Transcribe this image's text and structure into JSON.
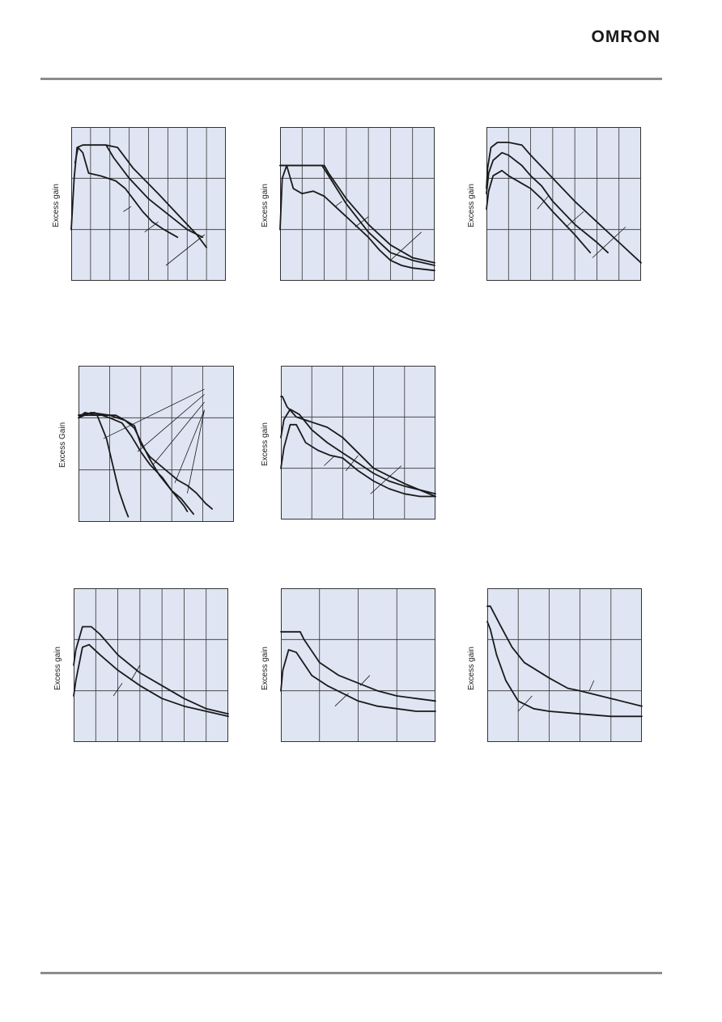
{
  "header": {
    "brand": "OMRON"
  },
  "colors": {
    "plot_background": "#dfe5f3",
    "grid": "#333333",
    "curve": "#1a1a1a",
    "rule": "#8c8c8c"
  },
  "chart_data": [
    {
      "type": "line",
      "ylabel": "Excess gain",
      "xlim": [
        0,
        8
      ],
      "ylim": [
        0,
        3
      ],
      "grid": {
        "x": 8,
        "y": 3
      },
      "series": [
        {
          "x": [
            0,
            0.15,
            0.3,
            0.6,
            1.0,
            1.8,
            2.4,
            3.2,
            4.5,
            5.5,
            6.5,
            7.0
          ],
          "y": [
            1.0,
            2.0,
            2.6,
            2.65,
            2.65,
            2.65,
            2.6,
            2.2,
            1.7,
            1.3,
            0.9,
            0.65
          ]
        },
        {
          "x": [
            1.8,
            2.2,
            3.0,
            4.0,
            5.0,
            6.0,
            6.8
          ],
          "y": [
            2.65,
            2.4,
            2.0,
            1.6,
            1.3,
            1.0,
            0.85
          ]
        },
        {
          "x": [
            0.2,
            0.35,
            0.6,
            0.9,
            1.5,
            2.3,
            2.8,
            3.2,
            3.7,
            4.2,
            4.8,
            5.5
          ],
          "y": [
            2.3,
            2.6,
            2.5,
            2.1,
            2.05,
            1.95,
            1.8,
            1.6,
            1.35,
            1.15,
            1.0,
            0.85
          ]
        }
      ],
      "pointers": [
        {
          "x": [
            2.7,
            3.1
          ],
          "y": [
            1.35,
            1.45
          ]
        },
        {
          "x": [
            3.8,
            4.5
          ],
          "y": [
            0.95,
            1.15
          ]
        },
        {
          "x": [
            4.9,
            6.9
          ],
          "y": [
            0.3,
            0.9
          ]
        }
      ]
    },
    {
      "type": "line",
      "ylabel": "Excess gain",
      "xlim": [
        0,
        7
      ],
      "ylim": [
        0,
        3
      ],
      "grid": {
        "x": 7,
        "y": 3
      },
      "series": [
        {
          "x": [
            0,
            2.0,
            2.2,
            3.0,
            4.0,
            5.0,
            6.0,
            7.0
          ],
          "y": [
            2.25,
            2.25,
            2.1,
            1.6,
            1.1,
            0.7,
            0.45,
            0.35
          ]
        },
        {
          "x": [
            0,
            1.9,
            2.2,
            3.0,
            4.0,
            5.0,
            6.0,
            7.0
          ],
          "y": [
            2.25,
            2.25,
            2.05,
            1.5,
            0.95,
            0.55,
            0.4,
            0.3
          ]
        },
        {
          "x": [
            0,
            0.1,
            0.3,
            0.6,
            1.0,
            1.5,
            2.0,
            2.5,
            3.0,
            3.5,
            4.0,
            4.5,
            5.0,
            5.5,
            6.0,
            7.0
          ],
          "y": [
            1.0,
            2.0,
            2.25,
            1.8,
            1.7,
            1.75,
            1.65,
            1.45,
            1.25,
            1.05,
            0.85,
            0.6,
            0.4,
            0.3,
            0.25,
            0.2
          ]
        }
      ],
      "pointers": [
        {
          "x": [
            2.5,
            2.8
          ],
          "y": [
            1.45,
            1.55
          ]
        },
        {
          "x": [
            3.4,
            4.0
          ],
          "y": [
            1.05,
            1.25
          ]
        },
        {
          "x": [
            5.0,
            6.4
          ],
          "y": [
            0.4,
            0.95
          ]
        }
      ]
    },
    {
      "type": "line",
      "ylabel": "Excess gain",
      "xlim": [
        0,
        7
      ],
      "ylim": [
        0,
        3
      ],
      "grid": {
        "x": 7,
        "y": 3
      },
      "series": [
        {
          "x": [
            0,
            0.05,
            0.2,
            0.5,
            1.0,
            1.6,
            2.0,
            3.0,
            4.0,
            5.0,
            6.0,
            7.0
          ],
          "y": [
            1.8,
            2.2,
            2.6,
            2.7,
            2.7,
            2.65,
            2.45,
            2.0,
            1.55,
            1.15,
            0.75,
            0.35
          ]
        },
        {
          "x": [
            0,
            0.1,
            0.3,
            0.7,
            1.0,
            1.6,
            2.0,
            2.5,
            3.0,
            4.0,
            5.0,
            5.5
          ],
          "y": [
            1.7,
            2.1,
            2.35,
            2.5,
            2.45,
            2.25,
            2.05,
            1.85,
            1.55,
            1.1,
            0.75,
            0.55
          ]
        },
        {
          "x": [
            0,
            0.1,
            0.3,
            0.7,
            1.0,
            1.6,
            2.0,
            2.5,
            3.0,
            4.0,
            4.7
          ],
          "y": [
            1.4,
            1.75,
            2.05,
            2.15,
            2.05,
            1.9,
            1.8,
            1.6,
            1.35,
            0.9,
            0.55
          ]
        }
      ],
      "pointers": [
        {
          "x": [
            2.3,
            2.8
          ],
          "y": [
            1.4,
            1.65
          ]
        },
        {
          "x": [
            3.6,
            4.4
          ],
          "y": [
            1.05,
            1.35
          ]
        },
        {
          "x": [
            4.8,
            6.3
          ],
          "y": [
            0.45,
            1.05
          ]
        }
      ]
    },
    {
      "type": "line",
      "ylabel": "Excess Gain",
      "xlim": [
        0,
        5
      ],
      "ylim": [
        0,
        3
      ],
      "grid": {
        "x": 5,
        "y": 3
      },
      "series": [
        {
          "x": [
            0,
            0.2,
            0.6,
            0.9,
            1.1,
            1.3,
            1.5,
            1.6
          ],
          "y": [
            2.0,
            2.1,
            2.05,
            1.6,
            1.1,
            0.6,
            0.25,
            0.1
          ]
        },
        {
          "x": [
            0,
            0.4,
            1.0,
            1.5,
            1.8,
            2.0,
            2.3,
            2.6,
            3.0,
            3.4,
            3.5
          ],
          "y": [
            2.0,
            2.1,
            2.05,
            1.95,
            1.8,
            1.55,
            1.2,
            0.9,
            0.6,
            0.3,
            0.2
          ]
        },
        {
          "x": [
            0,
            0.5,
            1.0,
            1.4,
            1.7,
            2.0,
            2.3,
            2.7,
            3.0,
            3.3,
            3.5,
            3.7
          ],
          "y": [
            2.05,
            2.1,
            2.0,
            1.9,
            1.65,
            1.35,
            1.1,
            0.85,
            0.6,
            0.45,
            0.3,
            0.15
          ]
        },
        {
          "x": [
            0,
            0.5,
            1.2,
            1.8,
            2.0,
            2.3,
            2.6,
            2.9,
            3.2,
            3.5,
            3.8,
            4.1,
            4.3
          ],
          "y": [
            2.05,
            2.05,
            2.05,
            1.85,
            1.5,
            1.25,
            1.1,
            0.95,
            0.8,
            0.7,
            0.55,
            0.35,
            0.25
          ]
        }
      ],
      "pointers": [
        {
          "x": [
            0.8,
            4.05
          ],
          "y": [
            1.6,
            2.55
          ]
        },
        {
          "x": [
            1.9,
            4.05
          ],
          "y": [
            1.35,
            2.45
          ]
        },
        {
          "x": [
            2.4,
            4.05
          ],
          "y": [
            1.1,
            2.3
          ]
        },
        {
          "x": [
            3.1,
            4.05
          ],
          "y": [
            0.75,
            2.15
          ]
        },
        {
          "x": [
            3.5,
            4.05
          ],
          "y": [
            0.55,
            2.15
          ]
        }
      ]
    },
    {
      "type": "line",
      "ylabel": "Excess gain",
      "xlim": [
        0,
        5
      ],
      "ylim": [
        0,
        3
      ],
      "grid": {
        "x": 5,
        "y": 3
      },
      "series": [
        {
          "x": [
            0,
            0.05,
            0.2,
            0.5,
            1.0,
            1.5,
            2.0,
            2.5,
            3.0,
            3.5,
            4.0,
            5.0
          ],
          "y": [
            2.4,
            2.4,
            2.2,
            2.0,
            1.9,
            1.8,
            1.6,
            1.3,
            1.0,
            0.85,
            0.7,
            0.45
          ]
        },
        {
          "x": [
            0,
            0.1,
            0.3,
            0.6,
            1.0,
            1.5,
            2.0,
            2.5,
            3.0,
            3.5,
            4.0,
            5.0
          ],
          "y": [
            1.6,
            1.95,
            2.15,
            2.05,
            1.75,
            1.5,
            1.3,
            1.1,
            0.9,
            0.75,
            0.65,
            0.5
          ]
        },
        {
          "x": [
            0,
            0.1,
            0.3,
            0.5,
            0.8,
            1.2,
            1.6,
            2.0,
            2.5,
            3.0,
            3.5,
            4.0,
            4.5,
            5.0
          ],
          "y": [
            1.0,
            1.4,
            1.85,
            1.85,
            1.5,
            1.35,
            1.25,
            1.2,
            0.95,
            0.75,
            0.6,
            0.5,
            0.45,
            0.45
          ]
        }
      ],
      "pointers": [
        {
          "x": [
            1.4,
            1.75
          ],
          "y": [
            1.05,
            1.25
          ]
        },
        {
          "x": [
            2.1,
            2.5
          ],
          "y": [
            0.95,
            1.25
          ]
        },
        {
          "x": [
            2.9,
            3.9
          ],
          "y": [
            0.5,
            1.05
          ]
        }
      ]
    },
    {
      "type": "line",
      "ylabel": "Excess gain",
      "xlim": [
        0,
        7
      ],
      "ylim": [
        0,
        3
      ],
      "grid": {
        "x": 7,
        "y": 3
      },
      "series": [
        {
          "x": [
            0,
            0.1,
            0.4,
            0.8,
            1.2,
            2.0,
            3.0,
            4.0,
            5.0,
            6.0,
            7.0
          ],
          "y": [
            1.5,
            1.8,
            2.25,
            2.25,
            2.1,
            1.7,
            1.35,
            1.1,
            0.85,
            0.65,
            0.55
          ]
        },
        {
          "x": [
            0,
            0.1,
            0.4,
            0.7,
            1.2,
            2.0,
            3.0,
            4.0,
            5.0,
            6.0,
            7.0
          ],
          "y": [
            0.9,
            1.2,
            1.85,
            1.9,
            1.7,
            1.4,
            1.1,
            0.85,
            0.7,
            0.6,
            0.5
          ]
        }
      ],
      "pointers": [
        {
          "x": [
            2.6,
            3.0
          ],
          "y": [
            1.2,
            1.5
          ]
        },
        {
          "x": [
            1.8,
            2.2
          ],
          "y": [
            0.9,
            1.15
          ]
        }
      ]
    },
    {
      "type": "line",
      "ylabel": "Excess gain",
      "xlim": [
        0,
        4
      ],
      "ylim": [
        0,
        3
      ],
      "grid": {
        "x": 4,
        "y": 3
      },
      "series": [
        {
          "x": [
            0,
            0.5,
            0.6,
            1.0,
            1.5,
            2.0,
            2.5,
            3.0,
            3.5,
            4.0
          ],
          "y": [
            2.15,
            2.15,
            2.0,
            1.55,
            1.3,
            1.15,
            1.0,
            0.9,
            0.85,
            0.8
          ]
        },
        {
          "x": [
            0,
            0.05,
            0.2,
            0.4,
            0.8,
            1.2,
            1.6,
            2.0,
            2.5,
            3.0,
            3.5,
            4.0
          ],
          "y": [
            1.0,
            1.4,
            1.8,
            1.75,
            1.3,
            1.1,
            0.95,
            0.8,
            0.7,
            0.65,
            0.6,
            0.6
          ]
        }
      ],
      "pointers": [
        {
          "x": [
            2.05,
            2.3
          ],
          "y": [
            1.1,
            1.3
          ]
        },
        {
          "x": [
            1.4,
            1.75
          ],
          "y": [
            0.7,
            0.95
          ]
        }
      ]
    },
    {
      "type": "line",
      "ylabel": "Excess gain",
      "xlim": [
        0,
        5
      ],
      "ylim": [
        0,
        3
      ],
      "grid": {
        "x": 5,
        "y": 3
      },
      "series": [
        {
          "x": [
            0,
            0.1,
            0.4,
            0.8,
            1.2,
            2.0,
            2.6,
            3.0,
            4.0,
            5.0
          ],
          "y": [
            2.65,
            2.65,
            2.3,
            1.85,
            1.55,
            1.25,
            1.05,
            1.0,
            0.85,
            0.7
          ]
        },
        {
          "x": [
            0,
            0.1,
            0.3,
            0.6,
            1.0,
            1.5,
            2.0,
            3.0,
            4.0,
            5.0
          ],
          "y": [
            2.35,
            2.2,
            1.7,
            1.2,
            0.8,
            0.65,
            0.6,
            0.55,
            0.5,
            0.5
          ]
        }
      ],
      "pointers": [
        {
          "x": [
            3.3,
            3.45
          ],
          "y": [
            1.0,
            1.2
          ]
        },
        {
          "x": [
            1.0,
            1.45
          ],
          "y": [
            0.6,
            0.9
          ]
        }
      ]
    }
  ]
}
